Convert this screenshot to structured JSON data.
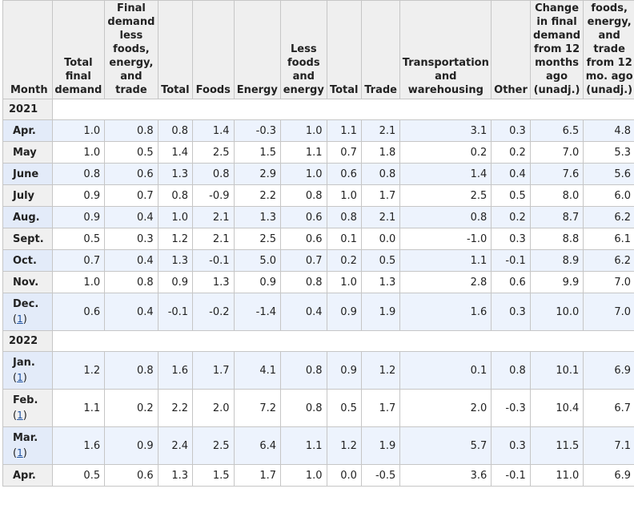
{
  "headers": {
    "month": "Month",
    "total_final_demand": "Total final demand",
    "fd_less": "Final demand less foods, energy, and trade",
    "total_goods": "Total",
    "foods": "Foods",
    "energy": "Energy",
    "less_foods_energy": "Less foods and energy",
    "total_services": "Total",
    "trade": "Trade",
    "transportation": "Transportation and warehousing",
    "other": "Other",
    "change_12mo": "Change in final demand from 12 months ago (unadj.)",
    "change_12mo_core": "foods, energy, and trade from 12 mo. ago (unadj.)"
  },
  "years": {
    "y2021": "2021",
    "y2022": "2022"
  },
  "footnote_marker": "1",
  "rows": [
    {
      "month": "Apr.",
      "vals": [
        "1.0",
        "0.8",
        "0.8",
        "1.4",
        "-0.3",
        "1.0",
        "1.1",
        "2.1",
        "3.1",
        "0.3",
        "6.5",
        "4.8"
      ]
    },
    {
      "month": "May",
      "vals": [
        "1.0",
        "0.5",
        "1.4",
        "2.5",
        "1.5",
        "1.1",
        "0.7",
        "1.8",
        "0.2",
        "0.2",
        "7.0",
        "5.3"
      ]
    },
    {
      "month": "June",
      "vals": [
        "0.8",
        "0.6",
        "1.3",
        "0.8",
        "2.9",
        "1.0",
        "0.6",
        "0.8",
        "1.4",
        "0.4",
        "7.6",
        "5.6"
      ]
    },
    {
      "month": "July",
      "vals": [
        "0.9",
        "0.7",
        "0.8",
        "-0.9",
        "2.2",
        "0.8",
        "1.0",
        "1.7",
        "2.5",
        "0.5",
        "8.0",
        "6.0"
      ]
    },
    {
      "month": "Aug.",
      "vals": [
        "0.9",
        "0.4",
        "1.0",
        "2.1",
        "1.3",
        "0.6",
        "0.8",
        "2.1",
        "0.8",
        "0.2",
        "8.7",
        "6.2"
      ]
    },
    {
      "month": "Sept.",
      "vals": [
        "0.5",
        "0.3",
        "1.2",
        "2.1",
        "2.5",
        "0.6",
        "0.1",
        "0.0",
        "-1.0",
        "0.3",
        "8.8",
        "6.1"
      ]
    },
    {
      "month": "Oct.",
      "vals": [
        "0.7",
        "0.4",
        "1.3",
        "-0.1",
        "5.0",
        "0.7",
        "0.2",
        "0.5",
        "1.1",
        "-0.1",
        "8.9",
        "6.2"
      ]
    },
    {
      "month": "Nov.",
      "vals": [
        "1.0",
        "0.8",
        "0.9",
        "1.3",
        "0.9",
        "0.8",
        "1.0",
        "1.3",
        "2.8",
        "0.6",
        "9.9",
        "7.0"
      ]
    },
    {
      "month": "Dec.",
      "vals": [
        "0.6",
        "0.4",
        "-0.1",
        "-0.2",
        "-1.4",
        "0.4",
        "0.9",
        "1.9",
        "1.6",
        "0.3",
        "10.0",
        "7.0"
      ]
    },
    {
      "month": "Jan.",
      "vals": [
        "1.2",
        "0.8",
        "1.6",
        "1.7",
        "4.1",
        "0.8",
        "0.9",
        "1.2",
        "0.1",
        "0.8",
        "10.1",
        "6.9"
      ]
    },
    {
      "month": "Feb.",
      "vals": [
        "1.1",
        "0.2",
        "2.2",
        "2.0",
        "7.2",
        "0.8",
        "0.5",
        "1.7",
        "2.0",
        "-0.3",
        "10.4",
        "6.7"
      ]
    },
    {
      "month": "Mar.",
      "vals": [
        "1.6",
        "0.9",
        "2.4",
        "2.5",
        "6.4",
        "1.1",
        "1.2",
        "1.9",
        "5.7",
        "0.3",
        "11.5",
        "7.1"
      ]
    },
    {
      "month": "Apr.",
      "vals": [
        "0.5",
        "0.6",
        "1.3",
        "1.5",
        "1.7",
        "1.0",
        "0.0",
        "-0.5",
        "3.6",
        "-0.1",
        "11.0",
        "6.9"
      ]
    }
  ]
}
